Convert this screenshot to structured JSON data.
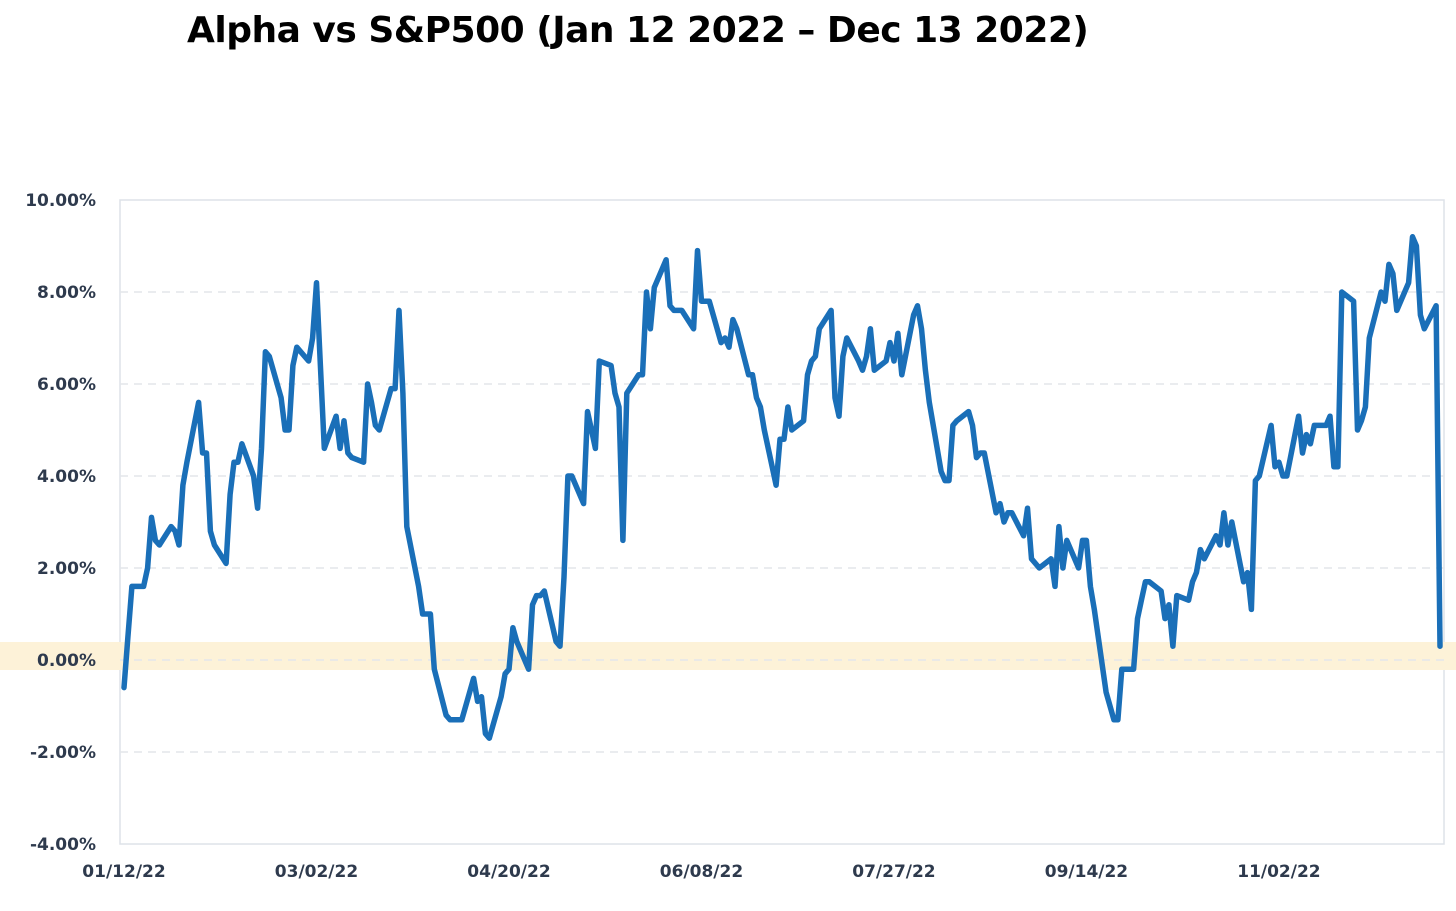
{
  "chart_data": {
    "type": "line",
    "title": "Alpha vs S&P500 (Jan 12 2022 – Dec 13 2022)",
    "xlabel": "",
    "ylabel": "",
    "ylim": [
      -4,
      10
    ],
    "y_ticks": [
      10,
      8,
      6,
      4,
      2,
      0,
      -2,
      -4
    ],
    "y_tick_labels": [
      "10.00%",
      "8.00%",
      "6.00%",
      "4.00%",
      "2.00%",
      "0.00%",
      "-2.00%",
      "-4.00%"
    ],
    "x_tick_labels": [
      "01/12/22",
      "03/02/22",
      "04/20/22",
      "06/08/22",
      "07/27/22",
      "09/14/22",
      "11/02/22"
    ],
    "x_tick_dates": [
      "2022-01-12",
      "2022-03-02",
      "2022-04-20",
      "2022-06-08",
      "2022-07-27",
      "2022-09-14",
      "2022-11-02"
    ],
    "xlim": [
      "2022-01-12",
      "2022-12-13"
    ],
    "grid": "horizontal dashed",
    "legend": "none",
    "zero_band_color": "#fdf2d8",
    "series": [
      {
        "color": "#1a6fb8",
        "points": [
          [
            "2022-01-12",
            -0.6
          ],
          [
            "2022-01-13",
            0.5
          ],
          [
            "2022-01-14",
            1.6
          ],
          [
            "2022-01-17",
            1.6
          ],
          [
            "2022-01-18",
            2.0
          ],
          [
            "2022-01-19",
            3.1
          ],
          [
            "2022-01-20",
            2.6
          ],
          [
            "2022-01-21",
            2.5
          ],
          [
            "2022-01-24",
            2.9
          ],
          [
            "2022-01-25",
            2.8
          ],
          [
            "2022-01-26",
            2.5
          ],
          [
            "2022-01-27",
            3.8
          ],
          [
            "2022-01-28",
            4.3
          ],
          [
            "2022-01-31",
            5.6
          ],
          [
            "2022-02-01",
            4.5
          ],
          [
            "2022-02-02",
            4.5
          ],
          [
            "2022-02-03",
            2.8
          ],
          [
            "2022-02-04",
            2.5
          ],
          [
            "2022-02-07",
            2.1
          ],
          [
            "2022-02-08",
            3.6
          ],
          [
            "2022-02-09",
            4.3
          ],
          [
            "2022-02-10",
            4.3
          ],
          [
            "2022-02-11",
            4.7
          ],
          [
            "2022-02-14",
            4.0
          ],
          [
            "2022-02-15",
            3.3
          ],
          [
            "2022-02-16",
            4.6
          ],
          [
            "2022-02-17",
            6.7
          ],
          [
            "2022-02-18",
            6.6
          ],
          [
            "2022-02-21",
            5.7
          ],
          [
            "2022-02-22",
            5.0
          ],
          [
            "2022-02-23",
            5.0
          ],
          [
            "2022-02-24",
            6.4
          ],
          [
            "2022-02-25",
            6.8
          ],
          [
            "2022-02-28",
            6.5
          ],
          [
            "2022-03-01",
            7.0
          ],
          [
            "2022-03-02",
            8.2
          ],
          [
            "2022-03-03",
            6.4
          ],
          [
            "2022-03-04",
            4.6
          ],
          [
            "2022-03-07",
            5.3
          ],
          [
            "2022-03-08",
            4.6
          ],
          [
            "2022-03-09",
            5.2
          ],
          [
            "2022-03-10",
            4.5
          ],
          [
            "2022-03-11",
            4.4
          ],
          [
            "2022-03-14",
            4.3
          ],
          [
            "2022-03-15",
            6.0
          ],
          [
            "2022-03-16",
            5.6
          ],
          [
            "2022-03-17",
            5.1
          ],
          [
            "2022-03-18",
            5.0
          ],
          [
            "2022-03-21",
            5.9
          ],
          [
            "2022-03-22",
            5.9
          ],
          [
            "2022-03-23",
            7.6
          ],
          [
            "2022-03-24",
            5.8
          ],
          [
            "2022-03-25",
            2.9
          ],
          [
            "2022-03-28",
            1.6
          ],
          [
            "2022-03-29",
            1.0
          ],
          [
            "2022-03-30",
            1.0
          ],
          [
            "2022-03-31",
            1.0
          ],
          [
            "2022-04-01",
            -0.2
          ],
          [
            "2022-04-04",
            -1.2
          ],
          [
            "2022-04-05",
            -1.3
          ],
          [
            "2022-04-06",
            -1.3
          ],
          [
            "2022-04-07",
            -1.3
          ],
          [
            "2022-04-08",
            -1.3
          ],
          [
            "2022-04-11",
            -0.4
          ],
          [
            "2022-04-12",
            -0.9
          ],
          [
            "2022-04-13",
            -0.8
          ],
          [
            "2022-04-14",
            -1.6
          ],
          [
            "2022-04-15",
            -1.7
          ],
          [
            "2022-04-18",
            -0.8
          ],
          [
            "2022-04-19",
            -0.3
          ],
          [
            "2022-04-20",
            -0.2
          ],
          [
            "2022-04-21",
            0.7
          ],
          [
            "2022-04-22",
            0.4
          ],
          [
            "2022-04-25",
            -0.2
          ],
          [
            "2022-04-26",
            1.2
          ],
          [
            "2022-04-27",
            1.4
          ],
          [
            "2022-04-28",
            1.4
          ],
          [
            "2022-04-29",
            1.5
          ],
          [
            "2022-05-02",
            0.4
          ],
          [
            "2022-05-03",
            0.3
          ],
          [
            "2022-05-04",
            1.8
          ],
          [
            "2022-05-05",
            4.0
          ],
          [
            "2022-05-06",
            4.0
          ],
          [
            "2022-05-09",
            3.4
          ],
          [
            "2022-05-10",
            5.4
          ],
          [
            "2022-05-11",
            5.0
          ],
          [
            "2022-05-12",
            4.6
          ],
          [
            "2022-05-13",
            6.5
          ],
          [
            "2022-05-16",
            6.4
          ],
          [
            "2022-05-17",
            5.8
          ],
          [
            "2022-05-18",
            5.5
          ],
          [
            "2022-05-19",
            2.6
          ],
          [
            "2022-05-20",
            5.8
          ],
          [
            "2022-05-23",
            6.2
          ],
          [
            "2022-05-24",
            6.2
          ],
          [
            "2022-05-25",
            8.0
          ],
          [
            "2022-05-26",
            7.2
          ],
          [
            "2022-05-27",
            8.1
          ],
          [
            "2022-05-30",
            8.7
          ],
          [
            "2022-05-31",
            7.7
          ],
          [
            "2022-06-01",
            7.6
          ],
          [
            "2022-06-02",
            7.6
          ],
          [
            "2022-06-03",
            7.6
          ],
          [
            "2022-06-06",
            7.2
          ],
          [
            "2022-06-07",
            8.9
          ],
          [
            "2022-06-08",
            7.8
          ],
          [
            "2022-06-09",
            7.8
          ],
          [
            "2022-06-10",
            7.8
          ],
          [
            "2022-06-13",
            6.9
          ],
          [
            "2022-06-14",
            7.0
          ],
          [
            "2022-06-15",
            6.8
          ],
          [
            "2022-06-16",
            7.4
          ],
          [
            "2022-06-17",
            7.2
          ],
          [
            "2022-06-20",
            6.2
          ],
          [
            "2022-06-21",
            6.2
          ],
          [
            "2022-06-22",
            5.7
          ],
          [
            "2022-06-23",
            5.5
          ],
          [
            "2022-06-24",
            5.0
          ],
          [
            "2022-06-27",
            3.8
          ],
          [
            "2022-06-28",
            4.8
          ],
          [
            "2022-06-29",
            4.8
          ],
          [
            "2022-06-30",
            5.5
          ],
          [
            "2022-07-01",
            5.0
          ],
          [
            "2022-07-04",
            5.2
          ],
          [
            "2022-07-05",
            6.2
          ],
          [
            "2022-07-06",
            6.5
          ],
          [
            "2022-07-07",
            6.6
          ],
          [
            "2022-07-08",
            7.2
          ],
          [
            "2022-07-11",
            7.6
          ],
          [
            "2022-07-12",
            5.7
          ],
          [
            "2022-07-13",
            5.3
          ],
          [
            "2022-07-14",
            6.6
          ],
          [
            "2022-07-15",
            7.0
          ],
          [
            "2022-07-18",
            6.5
          ],
          [
            "2022-07-19",
            6.3
          ],
          [
            "2022-07-20",
            6.6
          ],
          [
            "2022-07-21",
            7.2
          ],
          [
            "2022-07-22",
            6.3
          ],
          [
            "2022-07-25",
            6.5
          ],
          [
            "2022-07-26",
            6.9
          ],
          [
            "2022-07-27",
            6.5
          ],
          [
            "2022-07-28",
            7.1
          ],
          [
            "2022-07-29",
            6.2
          ],
          [
            "2022-08-01",
            7.5
          ],
          [
            "2022-08-02",
            7.7
          ],
          [
            "2022-08-03",
            7.2
          ],
          [
            "2022-08-04",
            6.3
          ],
          [
            "2022-08-05",
            5.6
          ],
          [
            "2022-08-08",
            4.1
          ],
          [
            "2022-08-09",
            3.9
          ],
          [
            "2022-08-10",
            3.9
          ],
          [
            "2022-08-11",
            5.1
          ],
          [
            "2022-08-12",
            5.2
          ],
          [
            "2022-08-15",
            5.4
          ],
          [
            "2022-08-16",
            5.1
          ],
          [
            "2022-08-17",
            4.4
          ],
          [
            "2022-08-18",
            4.5
          ],
          [
            "2022-08-19",
            4.5
          ],
          [
            "2022-08-22",
            3.2
          ],
          [
            "2022-08-23",
            3.4
          ],
          [
            "2022-08-24",
            3.0
          ],
          [
            "2022-08-25",
            3.2
          ],
          [
            "2022-08-26",
            3.2
          ],
          [
            "2022-08-29",
            2.7
          ],
          [
            "2022-08-30",
            3.3
          ],
          [
            "2022-08-31",
            2.2
          ],
          [
            "2022-09-01",
            2.1
          ],
          [
            "2022-09-02",
            2.0
          ],
          [
            "2022-09-05",
            2.2
          ],
          [
            "2022-09-06",
            1.6
          ],
          [
            "2022-09-07",
            2.9
          ],
          [
            "2022-09-08",
            2.0
          ],
          [
            "2022-09-09",
            2.6
          ],
          [
            "2022-09-12",
            2.0
          ],
          [
            "2022-09-13",
            2.6
          ],
          [
            "2022-09-14",
            2.6
          ],
          [
            "2022-09-15",
            1.6
          ],
          [
            "2022-09-16",
            1.1
          ],
          [
            "2022-09-19",
            -0.7
          ],
          [
            "2022-09-20",
            -1.0
          ],
          [
            "2022-09-21",
            -1.3
          ],
          [
            "2022-09-22",
            -1.3
          ],
          [
            "2022-09-23",
            -0.2
          ],
          [
            "2022-09-26",
            -0.2
          ],
          [
            "2022-09-27",
            0.9
          ],
          [
            "2022-09-28",
            1.3
          ],
          [
            "2022-09-29",
            1.7
          ],
          [
            "2022-09-30",
            1.7
          ],
          [
            "2022-10-03",
            1.5
          ],
          [
            "2022-10-04",
            0.9
          ],
          [
            "2022-10-05",
            1.2
          ],
          [
            "2022-10-06",
            0.3
          ],
          [
            "2022-10-07",
            1.4
          ],
          [
            "2022-10-10",
            1.3
          ],
          [
            "2022-10-11",
            1.7
          ],
          [
            "2022-10-12",
            1.9
          ],
          [
            "2022-10-13",
            2.4
          ],
          [
            "2022-10-14",
            2.2
          ],
          [
            "2022-10-17",
            2.7
          ],
          [
            "2022-10-18",
            2.5
          ],
          [
            "2022-10-19",
            3.2
          ],
          [
            "2022-10-20",
            2.5
          ],
          [
            "2022-10-21",
            3.0
          ],
          [
            "2022-10-24",
            1.7
          ],
          [
            "2022-10-25",
            1.9
          ],
          [
            "2022-10-26",
            1.1
          ],
          [
            "2022-10-27",
            3.9
          ],
          [
            "2022-10-28",
            4.0
          ],
          [
            "2022-10-31",
            5.1
          ],
          [
            "2022-11-01",
            4.2
          ],
          [
            "2022-11-02",
            4.3
          ],
          [
            "2022-11-03",
            4.0
          ],
          [
            "2022-11-04",
            4.0
          ],
          [
            "2022-11-07",
            5.3
          ],
          [
            "2022-11-08",
            4.5
          ],
          [
            "2022-11-09",
            4.9
          ],
          [
            "2022-11-10",
            4.7
          ],
          [
            "2022-11-11",
            5.1
          ],
          [
            "2022-11-14",
            5.1
          ],
          [
            "2022-11-15",
            5.3
          ],
          [
            "2022-11-16",
            4.2
          ],
          [
            "2022-11-17",
            4.2
          ],
          [
            "2022-11-18",
            8.0
          ],
          [
            "2022-11-21",
            7.8
          ],
          [
            "2022-11-22",
            5.0
          ],
          [
            "2022-11-23",
            5.2
          ],
          [
            "2022-11-24",
            5.5
          ],
          [
            "2022-11-25",
            7.0
          ],
          [
            "2022-11-28",
            8.0
          ],
          [
            "2022-11-29",
            7.8
          ],
          [
            "2022-11-30",
            8.6
          ],
          [
            "2022-12-01",
            8.4
          ],
          [
            "2022-12-02",
            7.6
          ],
          [
            "2022-12-05",
            8.2
          ],
          [
            "2022-12-06",
            9.2
          ],
          [
            "2022-12-07",
            9.0
          ],
          [
            "2022-12-08",
            7.5
          ],
          [
            "2022-12-09",
            7.2
          ],
          [
            "2022-12-12",
            7.7
          ],
          [
            "2022-12-13",
            0.3
          ]
        ]
      }
    ]
  }
}
